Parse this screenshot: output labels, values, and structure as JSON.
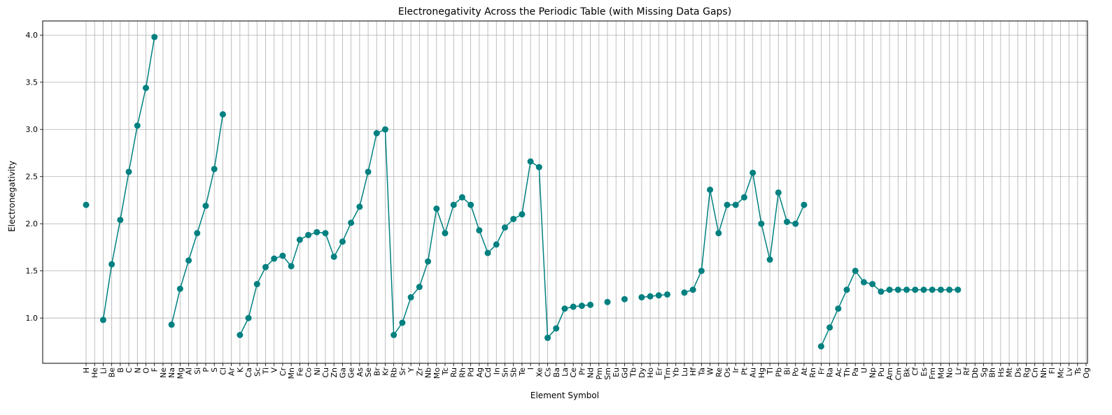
{
  "chart_data": {
    "type": "line",
    "title": "Electronegativity Across the Periodic Table (with Missing Data Gaps)",
    "xlabel": "Element Symbol",
    "ylabel": "Electronegativity",
    "ylim": [
      0.52,
      4.15
    ],
    "yticks": [
      1.0,
      1.5,
      2.0,
      2.5,
      3.0,
      3.5,
      4.0
    ],
    "grid": true,
    "series_color": "#008080",
    "categories": [
      "H",
      "He",
      "Li",
      "Be",
      "B",
      "C",
      "N",
      "O",
      "F",
      "Ne",
      "Na",
      "Mg",
      "Al",
      "Si",
      "P",
      "S",
      "Cl",
      "Ar",
      "K",
      "Ca",
      "Sc",
      "Ti",
      "V",
      "Cr",
      "Mn",
      "Fe",
      "Co",
      "Ni",
      "Cu",
      "Zn",
      "Ga",
      "Ge",
      "As",
      "Se",
      "Br",
      "Kr",
      "Rb",
      "Sr",
      "Y",
      "Zr",
      "Nb",
      "Mo",
      "Tc",
      "Ru",
      "Rh",
      "Pd",
      "Ag",
      "Cd",
      "In",
      "Sn",
      "Sb",
      "Te",
      "I",
      "Xe",
      "Cs",
      "Ba",
      "La",
      "Ce",
      "Pr",
      "Nd",
      "Pm",
      "Sm",
      "Eu",
      "Gd",
      "Tb",
      "Dy",
      "Ho",
      "Er",
      "Tm",
      "Yb",
      "Lu",
      "Hf",
      "Ta",
      "W",
      "Re",
      "Os",
      "Ir",
      "Pt",
      "Au",
      "Hg",
      "Tl",
      "Pb",
      "Bi",
      "Po",
      "At",
      "Rn",
      "Fr",
      "Ra",
      "Ac",
      "Th",
      "Pa",
      "U",
      "Np",
      "Pu",
      "Am",
      "Cm",
      "Bk",
      "Cf",
      "Es",
      "Fm",
      "Md",
      "No",
      "Lr",
      "Rf",
      "Db",
      "Sg",
      "Bh",
      "Hs",
      "Mt",
      "Ds",
      "Rg",
      "Cn",
      "Nh",
      "Fl",
      "Mc",
      "Lv",
      "Ts",
      "Og"
    ],
    "values": [
      2.2,
      null,
      0.98,
      1.57,
      2.04,
      2.55,
      3.04,
      3.44,
      3.98,
      null,
      0.93,
      1.31,
      1.61,
      1.9,
      2.19,
      2.58,
      3.16,
      null,
      0.82,
      1.0,
      1.36,
      1.54,
      1.63,
      1.66,
      1.55,
      1.83,
      1.88,
      1.91,
      1.9,
      1.65,
      1.81,
      2.01,
      2.18,
      2.55,
      2.96,
      3.0,
      0.82,
      0.95,
      1.22,
      1.33,
      1.6,
      2.16,
      1.9,
      2.2,
      2.28,
      2.2,
      1.93,
      1.69,
      1.78,
      1.96,
      2.05,
      2.1,
      2.66,
      2.6,
      0.79,
      0.89,
      1.1,
      1.12,
      1.13,
      1.14,
      null,
      1.17,
      null,
      1.2,
      null,
      1.22,
      1.23,
      1.24,
      1.25,
      null,
      1.27,
      1.3,
      1.5,
      2.36,
      1.9,
      2.2,
      2.2,
      2.28,
      2.54,
      2.0,
      1.62,
      2.33,
      2.02,
      2.0,
      2.2,
      null,
      0.7,
      0.9,
      1.1,
      1.3,
      1.5,
      1.38,
      1.36,
      1.28,
      1.3,
      1.3,
      1.3,
      1.3,
      1.3,
      1.3,
      1.3,
      1.3,
      1.3,
      null,
      null,
      null,
      null,
      null,
      null,
      null,
      null,
      null,
      null,
      null,
      null,
      null,
      null,
      null
    ]
  }
}
